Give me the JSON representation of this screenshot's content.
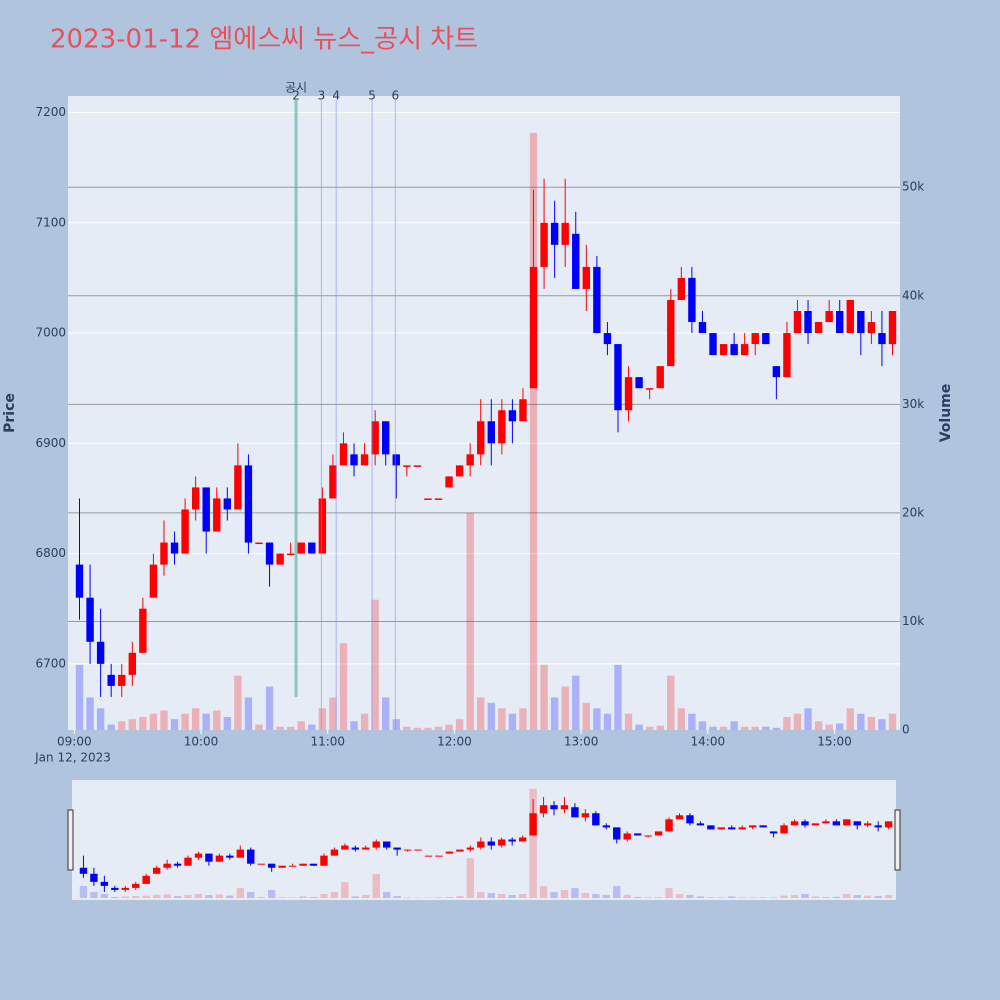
{
  "chart_data": {
    "type": "candlestick",
    "title": "2023-01-12 엠에스씨 뉴스_공시 차트",
    "y_label": "Price",
    "y2_label": "Volume",
    "date_label": "Jan 12, 2023",
    "up_color": "#ff0000",
    "down_color": "#0000ff",
    "xlim": [
      "08:57",
      "15:31"
    ],
    "xticks": [
      "09:00",
      "10:00",
      "11:00",
      "12:00",
      "13:00",
      "14:00",
      "15:00"
    ],
    "ylim": [
      6640,
      7215
    ],
    "yticks": [
      6700,
      6800,
      6900,
      7000,
      7100,
      7200
    ],
    "y2lim": [
      0,
      58400
    ],
    "y2ticks": [
      0,
      {
        "value": 10000,
        "label": "10k"
      },
      {
        "value": 20000,
        "label": "20k"
      },
      {
        "value": 30000,
        "label": "30k"
      },
      {
        "value": 40000,
        "label": "40k"
      },
      {
        "value": 50000,
        "label": "50k"
      }
    ],
    "annotation_title": "공시",
    "annotations": [
      {
        "time": "10:45",
        "label": "2"
      },
      {
        "time": "10:57",
        "label": "3"
      },
      {
        "time": "11:04",
        "label": "4"
      },
      {
        "time": "11:21",
        "label": "5"
      },
      {
        "time": "11:32",
        "label": "6"
      }
    ],
    "x": [
      "09:00",
      "09:05",
      "09:10",
      "09:15",
      "09:20",
      "09:25",
      "09:30",
      "09:35",
      "09:40",
      "09:45",
      "09:50",
      "09:55",
      "10:00",
      "10:05",
      "10:10",
      "10:15",
      "10:20",
      "10:25",
      "10:30",
      "10:35",
      "10:40",
      "10:45",
      "10:50",
      "10:55",
      "11:00",
      "11:05",
      "11:10",
      "11:15",
      "11:20",
      "11:25",
      "11:30",
      "11:35",
      "11:40",
      "11:45",
      "11:50",
      "11:55",
      "12:00",
      "12:05",
      "12:10",
      "12:15",
      "12:20",
      "12:25",
      "12:30",
      "12:35",
      "12:40",
      "12:45",
      "12:50",
      "12:55",
      "13:00",
      "13:05",
      "13:10",
      "13:15",
      "13:20",
      "13:25",
      "13:30",
      "13:35",
      "13:40",
      "13:45",
      "13:50",
      "13:55",
      "14:00",
      "14:05",
      "14:10",
      "14:15",
      "14:20",
      "14:25",
      "14:30",
      "14:35",
      "14:40",
      "14:45",
      "14:50",
      "14:55",
      "15:00",
      "15:05",
      "15:10",
      "15:15",
      "15:20",
      "15:25"
    ],
    "open": [
      6790,
      6760,
      6720,
      6690,
      6680,
      6690,
      6710,
      6760,
      6790,
      6810,
      6800,
      6840,
      6860,
      6820,
      6850,
      6840,
      6880,
      6810,
      6810,
      6790,
      6800,
      6800,
      6810,
      6800,
      6850,
      6880,
      6890,
      6880,
      6890,
      6920,
      6890,
      6880,
      6880,
      6850,
      6850,
      6860,
      6870,
      6880,
      6890,
      6920,
      6900,
      6930,
      6920,
      6950,
      7060,
      7100,
      7080,
      7090,
      7040,
      7060,
      7000,
      6990,
      6930,
      6960,
      6950,
      6950,
      6970,
      7030,
      7050,
      7010,
      7000,
      6980,
      6990,
      6980,
      6990,
      7000,
      6970,
      6960,
      7000,
      7020,
      7000,
      7010,
      7020,
      7000,
      7020,
      7000,
      7000,
      6990
    ],
    "high": [
      6850,
      6790,
      6750,
      6700,
      6700,
      6720,
      6760,
      6800,
      6830,
      6820,
      6850,
      6870,
      6860,
      6860,
      6860,
      6900,
      6890,
      6810,
      6810,
      6800,
      6810,
      6810,
      6810,
      6860,
      6890,
      6910,
      6900,
      6900,
      6930,
      6920,
      6890,
      6880,
      6880,
      6850,
      6850,
      6870,
      6880,
      6900,
      6940,
      6940,
      6940,
      6940,
      6950,
      7130,
      7140,
      7120,
      7140,
      7110,
      7080,
      7070,
      7010,
      6990,
      6970,
      6960,
      6950,
      6970,
      7040,
      7060,
      7060,
      7020,
      7000,
      6990,
      7000,
      7000,
      7000,
      7000,
      6970,
      7010,
      7030,
      7030,
      7010,
      7030,
      7030,
      7030,
      7020,
      7020,
      7020,
      7020
    ],
    "low": [
      6740,
      6700,
      6670,
      6670,
      6670,
      6680,
      6710,
      6760,
      6780,
      6790,
      6800,
      6830,
      6800,
      6820,
      6830,
      6840,
      6800,
      6810,
      6770,
      6790,
      6800,
      6800,
      6800,
      6800,
      6850,
      6880,
      6870,
      6880,
      6880,
      6880,
      6850,
      6870,
      6880,
      6850,
      6850,
      6860,
      6870,
      6870,
      6880,
      6880,
      6890,
      6900,
      6920,
      6950,
      7040,
      7050,
      7060,
      7040,
      7020,
      7000,
      6980,
      6910,
      6920,
      6950,
      6940,
      6950,
      6970,
      7030,
      7000,
      7000,
      6980,
      6980,
      6980,
      6980,
      6980,
      6990,
      6940,
      6960,
      7000,
      6990,
      7000,
      7010,
      7000,
      7000,
      6980,
      6990,
      6970,
      6980
    ],
    "close": [
      6760,
      6720,
      6700,
      6680,
      6690,
      6710,
      6750,
      6790,
      6810,
      6800,
      6840,
      6860,
      6820,
      6850,
      6840,
      6880,
      6810,
      6810,
      6790,
      6800,
      6800,
      6810,
      6800,
      6850,
      6880,
      6900,
      6880,
      6890,
      6920,
      6890,
      6880,
      6880,
      6880,
      6850,
      6850,
      6870,
      6880,
      6890,
      6920,
      6900,
      6930,
      6920,
      6940,
      7060,
      7100,
      7080,
      7100,
      7040,
      7060,
      7000,
      6990,
      6930,
      6960,
      6950,
      6950,
      6970,
      7030,
      7050,
      7010,
      7000,
      6980,
      6990,
      6980,
      6990,
      7000,
      6990,
      6960,
      7000,
      7020,
      7000,
      7010,
      7020,
      7000,
      7030,
      7000,
      7010,
      6990,
      7020
    ],
    "volume": [
      6000,
      3000,
      2000,
      500,
      800,
      1000,
      1200,
      1500,
      1800,
      1000,
      1500,
      2000,
      1500,
      1800,
      1200,
      5000,
      3000,
      500,
      4000,
      300,
      300,
      800,
      500,
      2000,
      3000,
      8000,
      800,
      1500,
      12000,
      3000,
      1000,
      300,
      200,
      200,
      300,
      500,
      1000,
      20000,
      3000,
      2500,
      2000,
      1500,
      2000,
      55000,
      6000,
      3000,
      4000,
      5000,
      2500,
      2000,
      1500,
      6000,
      1500,
      500,
      300,
      400,
      5000,
      2000,
      1500,
      800,
      300,
      300,
      800,
      300,
      300,
      300,
      200,
      1200,
      1500,
      2000,
      800,
      500,
      600,
      2000,
      1500,
      1200,
      1000,
      1500
    ]
  }
}
